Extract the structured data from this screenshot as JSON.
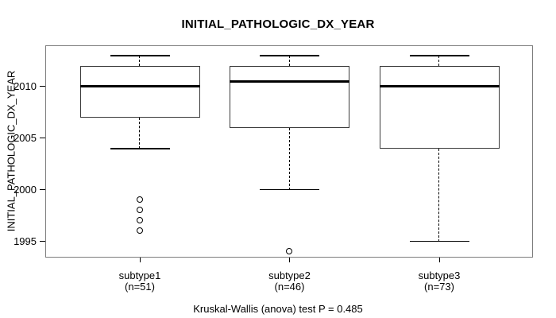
{
  "chart_data": {
    "type": "boxplot",
    "title": "INITIAL_PATHOLOGIC_DX_YEAR",
    "ylabel": "INITIAL_PATHOLOGIC_DX_YEAR",
    "footer": "Kruskal-Wallis (anova) test P = 0.485",
    "yticks": [
      1995,
      2000,
      2005,
      2010
    ],
    "ylim": [
      1993.5,
      2014
    ],
    "grid": false,
    "colors": {
      "line": "#000000",
      "frame": "#7d7d7d",
      "background": "#ffffff"
    },
    "groups": [
      {
        "label": "subtype1",
        "sublabel": "(n=51)",
        "n": 51,
        "whisker_low": 2004,
        "q1": 2007,
        "median": 2010,
        "q3": 2012,
        "whisker_high": 2013,
        "outliers": [
          1999,
          1998,
          1997,
          1996
        ]
      },
      {
        "label": "subtype2",
        "sublabel": "(n=46)",
        "n": 46,
        "whisker_low": 2000,
        "q1": 2006,
        "median": 2010.5,
        "q3": 2012,
        "whisker_high": 2013,
        "outliers": [
          1994
        ]
      },
      {
        "label": "subtype3",
        "sublabel": "(n=73)",
        "n": 73,
        "whisker_low": 1995,
        "q1": 2004,
        "median": 2010,
        "q3": 2012,
        "whisker_high": 2013,
        "outliers": []
      }
    ]
  }
}
